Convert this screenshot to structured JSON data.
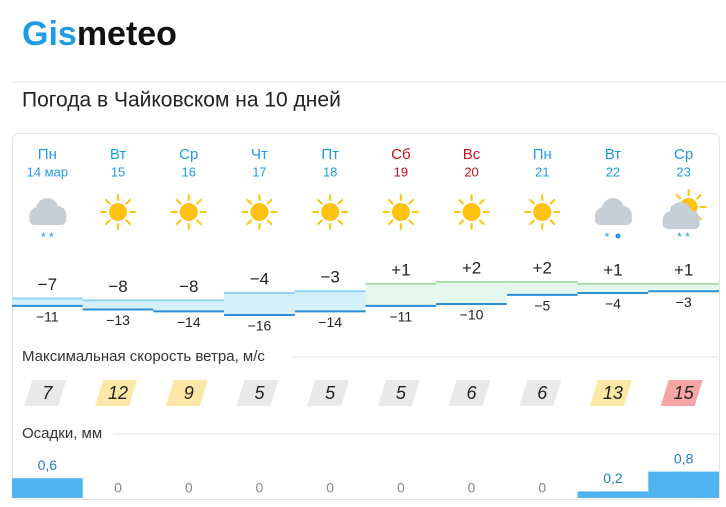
{
  "header": {
    "logo": {
      "accent": "Gis",
      "rest": "meteo"
    },
    "title": "Погода в Чайковском на 10 дней"
  },
  "forecast": {
    "weekend_color": "#c0141f",
    "days": [
      {
        "name": "Пн",
        "date": "14 мар",
        "weekend": false
      },
      {
        "name": "Вт",
        "date": "15",
        "weekend": false
      },
      {
        "name": "Ср",
        "date": "16",
        "weekend": false
      },
      {
        "name": "Чт",
        "date": "17",
        "weekend": false
      },
      {
        "name": "Пт",
        "date": "18",
        "weekend": false
      },
      {
        "name": "Сб",
        "date": "19",
        "weekend": true
      },
      {
        "name": "Вс",
        "date": "20",
        "weekend": true
      },
      {
        "name": "Пн",
        "date": "21",
        "weekend": false
      },
      {
        "name": "Вт",
        "date": "22",
        "weekend": false
      },
      {
        "name": "Ср",
        "date": "23",
        "weekend": false
      }
    ],
    "temp_max": [
      {
        "value": -7,
        "label": "−7"
      },
      {
        "value": -8,
        "label": "−8"
      },
      {
        "value": -8,
        "label": "−8"
      },
      {
        "value": -4,
        "label": "−4"
      },
      {
        "value": -3,
        "label": "−3"
      },
      {
        "value": 1,
        "label": "+1"
      },
      {
        "value": 2,
        "label": "+2"
      },
      {
        "value": 2,
        "label": "+2"
      },
      {
        "value": 1,
        "label": "+1"
      },
      {
        "value": 1,
        "label": "+1"
      }
    ],
    "temp_min": [
      {
        "value": -11,
        "label": "−11"
      },
      {
        "value": -13,
        "label": "−13"
      },
      {
        "value": -14,
        "label": "−14"
      },
      {
        "value": -16,
        "label": "−16"
      },
      {
        "value": -14,
        "label": "−14"
      },
      {
        "value": -11,
        "label": "−11"
      },
      {
        "value": -10,
        "label": "−10"
      },
      {
        "value": -5,
        "label": "−5"
      },
      {
        "value": -4,
        "label": "−4"
      },
      {
        "value": -3,
        "label": "−3"
      }
    ],
    "wind_title": "Максимальная скорость ветра, м/с",
    "wind": [
      7,
      12,
      9,
      5,
      5,
      5,
      6,
      6,
      13,
      15
    ],
    "precip_title": "Осадки, мм",
    "precip": [
      {
        "value": 0.6,
        "label": "0,6"
      },
      0,
      0,
      0,
      0,
      0,
      0,
      0,
      {
        "value": 0.2,
        "label": "0,2"
      },
      {
        "value": 0.8,
        "label": "0,8"
      }
    ]
  }
}
